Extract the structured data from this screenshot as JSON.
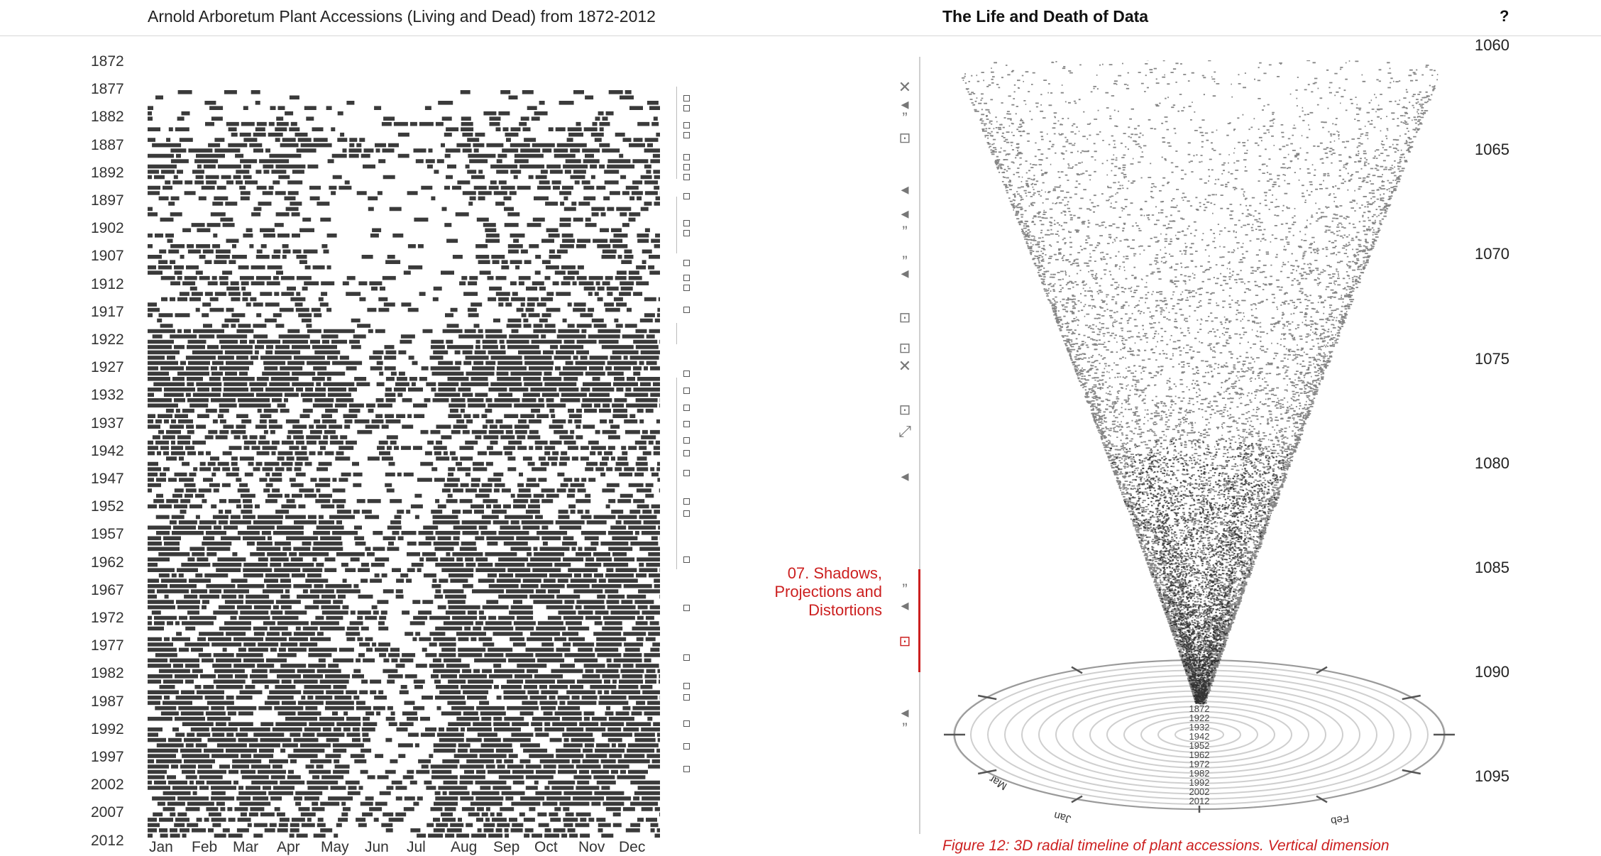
{
  "header": {
    "left_title": "Arnold Arboretum Plant Accessions (Living and Dead) from 1872-2012",
    "center_title": "The Life and Death of Data",
    "help_label": "?"
  },
  "calendar": {
    "years": [
      "1872",
      "1877",
      "1882",
      "1887",
      "1892",
      "1897",
      "1902",
      "1907",
      "1912",
      "1917",
      "1922",
      "1927",
      "1932",
      "1937",
      "1942",
      "1947",
      "1952",
      "1957",
      "1962",
      "1967",
      "1972",
      "1977",
      "1982",
      "1987",
      "1992",
      "1997",
      "2002",
      "2007",
      "2012"
    ],
    "months": [
      "Jan",
      "Feb",
      "Mar",
      "Apr",
      "May",
      "Jun",
      "Jul",
      "Aug",
      "Sep",
      "Oct",
      "Nov",
      "Dec"
    ]
  },
  "chart_data": {
    "type": "heatmap",
    "title": "Arnold Arboretum Plant Accessions (Living and Dead) from 1872-2012",
    "x_categories": [
      "Jan",
      "Feb",
      "Mar",
      "Apr",
      "May",
      "Jun",
      "Jul",
      "Aug",
      "Sep",
      "Oct",
      "Nov",
      "Dec"
    ],
    "y_categories": [
      "1872",
      "1877",
      "1882",
      "1887",
      "1892",
      "1897",
      "1902",
      "1907",
      "1912",
      "1917",
      "1922",
      "1927",
      "1932",
      "1937",
      "1942",
      "1947",
      "1952",
      "1957",
      "1962",
      "1967",
      "1972",
      "1977",
      "1982",
      "1987",
      "1992",
      "1997",
      "2002",
      "2007",
      "2012"
    ],
    "y_range": [
      1872,
      2012
    ],
    "density_by_period": [
      0.22,
      0.42,
      0.62,
      0.48,
      0.35,
      0.3,
      0.4,
      0.42,
      0.38,
      0.7,
      0.8,
      0.82,
      0.6,
      0.6,
      0.5,
      0.55,
      0.66,
      0.66,
      0.7,
      0.68,
      0.66,
      0.7,
      0.72,
      0.66,
      0.7,
      0.7,
      0.68,
      0.6,
      0.5
    ],
    "legend": "none",
    "grid": false
  },
  "figure": {
    "year_labels": [
      "1872",
      "1922",
      "1932",
      "1942",
      "1952",
      "1962",
      "1972",
      "1982",
      "1992",
      "2002",
      "2012"
    ],
    "month_labels": [
      "Jan",
      "Mar",
      "Feb"
    ],
    "caption": "Figure 12: 3D radial timeline of plant accessions. Vertical dimension"
  },
  "narrative": {
    "section_label": "07. Shadows, Projections and Distortions",
    "accent_color": "#cc1f1f",
    "icons": [
      "close-icon",
      "quote-icon",
      "image-icon",
      "note-icon",
      "quote-icon",
      "link-icon",
      "image-icon",
      "resize-icon",
      "note-icon",
      "quote-icon",
      "image-icon",
      "quote-icon"
    ]
  },
  "page_numbers": [
    "1060",
    "1065",
    "1070",
    "1075",
    "1080",
    "1085",
    "1090",
    "1095"
  ]
}
